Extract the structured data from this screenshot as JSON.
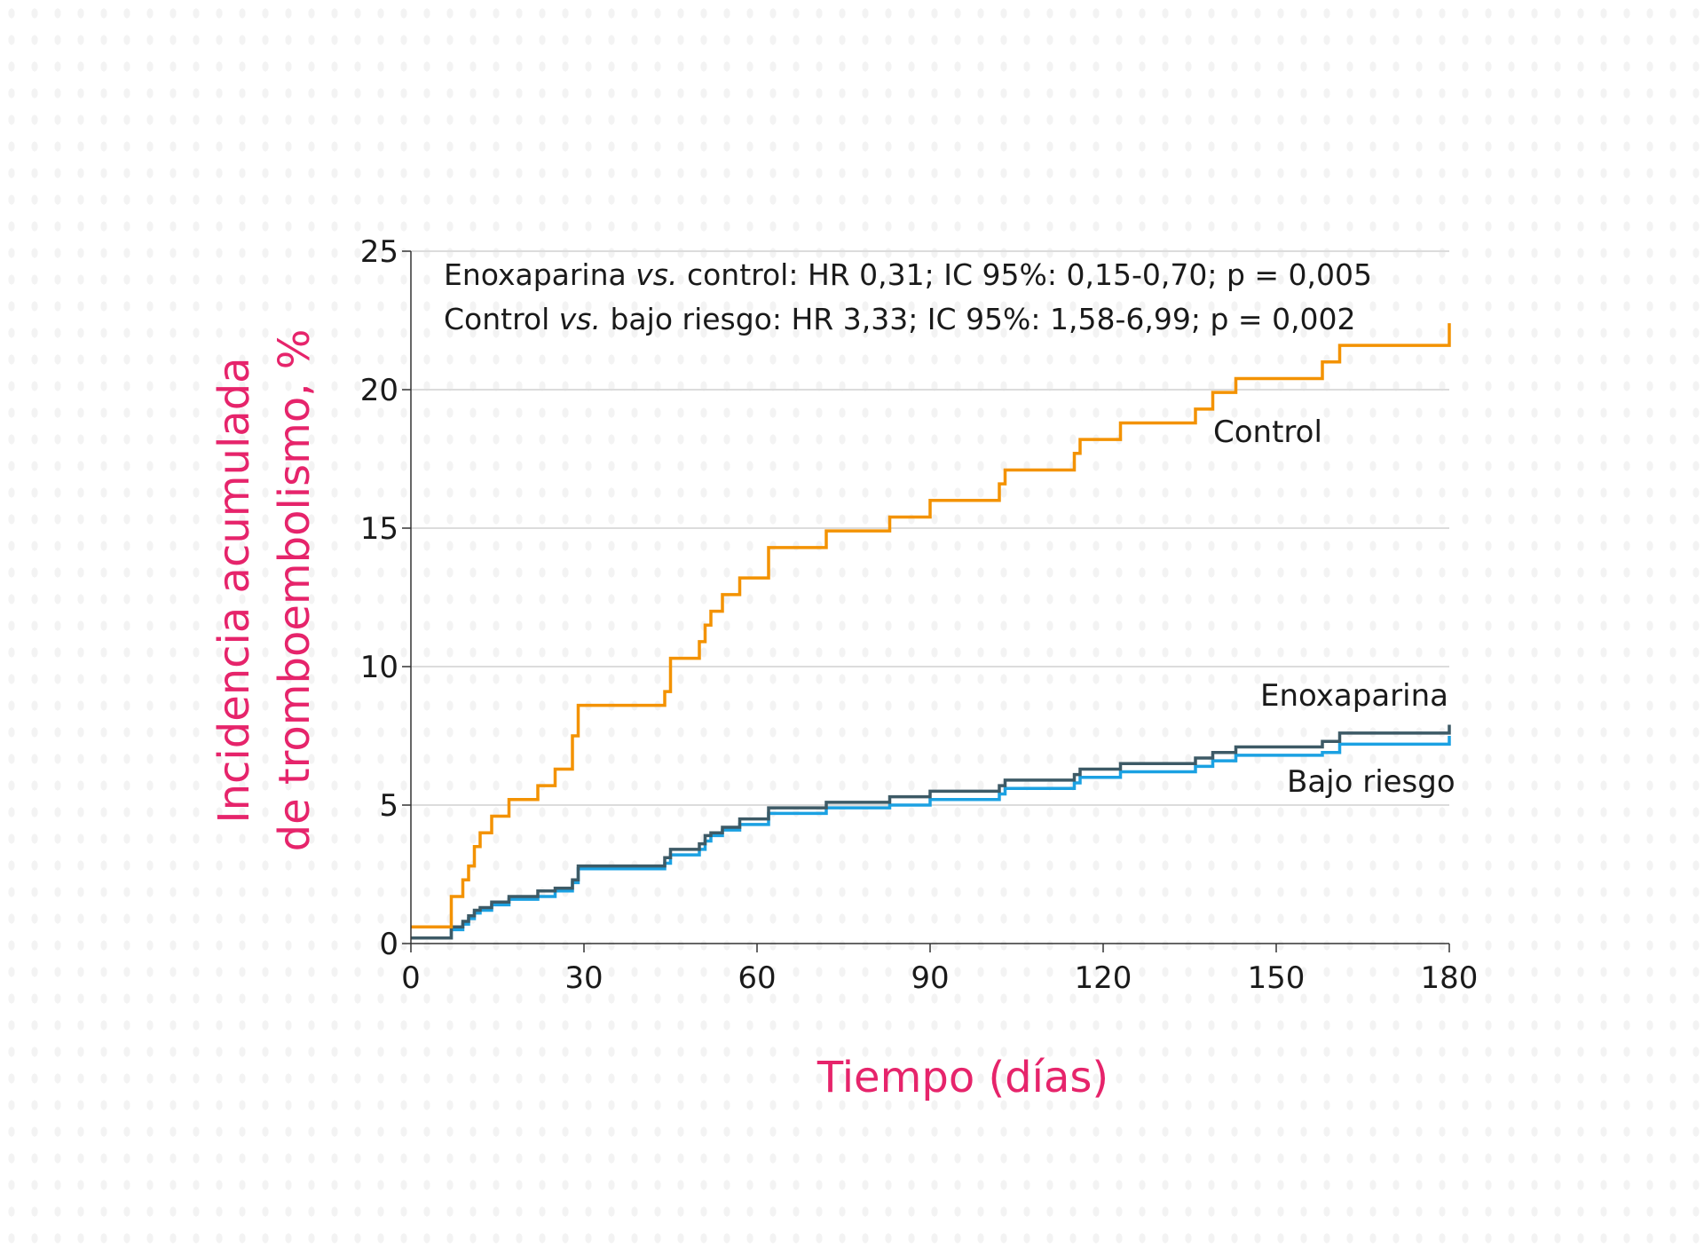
{
  "chart_data": {
    "type": "line",
    "step": true,
    "xlabel": "Tiempo (días)",
    "ylabel_lines": [
      "Incidencia acumulada",
      "de tromboembolismo, %"
    ],
    "xlim": [
      0,
      180
    ],
    "ylim": [
      0,
      25
    ],
    "xticks": [
      0,
      30,
      60,
      90,
      120,
      150,
      180
    ],
    "yticks": [
      0,
      5,
      10,
      15,
      20,
      25
    ],
    "grid": "horizontal",
    "annotations": [
      {
        "prefix": "Enoxaparina ",
        "italic": "vs.",
        "suffix": " control: HR 0,31; IC 95%: 0,15-0,70; p = 0,005"
      },
      {
        "prefix": "Control ",
        "italic": "vs.",
        "suffix": " bajo riesgo: HR 3,33; IC 95%: 1,58-6,99; p = 0,002"
      }
    ],
    "series": [
      {
        "name": "Control",
        "color": "#F39200",
        "x": [
          0,
          7,
          9,
          10,
          11,
          12,
          14,
          17,
          22,
          25,
          28,
          29,
          44,
          45,
          50,
          51,
          52,
          54,
          57,
          62,
          72,
          83,
          90,
          102,
          103,
          115,
          116,
          123,
          136,
          139,
          143,
          158,
          161,
          180
        ],
        "y": [
          0.6,
          1.7,
          2.3,
          2.8,
          3.5,
          4.0,
          4.6,
          5.2,
          5.7,
          6.3,
          7.5,
          8.6,
          9.1,
          10.3,
          10.9,
          11.5,
          12.0,
          12.6,
          13.2,
          14.3,
          14.9,
          15.4,
          16.0,
          16.6,
          17.1,
          17.7,
          18.2,
          18.8,
          19.3,
          19.9,
          20.4,
          21.0,
          21.6,
          22.4
        ]
      },
      {
        "name": "Enoxaparina",
        "color": "#3D5A66",
        "x": [
          0,
          7,
          9,
          10,
          11,
          12,
          14,
          17,
          22,
          25,
          28,
          29,
          44,
          45,
          50,
          51,
          52,
          54,
          57,
          62,
          72,
          83,
          90,
          102,
          103,
          115,
          116,
          123,
          136,
          139,
          143,
          158,
          161,
          180
        ],
        "y": [
          0.2,
          0.6,
          0.8,
          1.0,
          1.2,
          1.3,
          1.5,
          1.7,
          1.9,
          2.0,
          2.3,
          2.8,
          3.1,
          3.4,
          3.6,
          3.9,
          4.0,
          4.2,
          4.5,
          4.9,
          5.1,
          5.3,
          5.5,
          5.7,
          5.9,
          6.1,
          6.3,
          6.5,
          6.7,
          6.9,
          7.1,
          7.3,
          7.6,
          7.9
        ]
      },
      {
        "name": "Bajo riesgo",
        "color": "#1BA1E2",
        "x": [
          0,
          7,
          9,
          10,
          11,
          12,
          14,
          17,
          22,
          25,
          28,
          29,
          44,
          45,
          50,
          51,
          52,
          54,
          57,
          62,
          72,
          83,
          90,
          102,
          103,
          115,
          116,
          123,
          136,
          139,
          143,
          158,
          161,
          180
        ],
        "y": [
          0.2,
          0.5,
          0.7,
          0.9,
          1.1,
          1.2,
          1.4,
          1.6,
          1.7,
          1.9,
          2.2,
          2.7,
          2.9,
          3.2,
          3.4,
          3.7,
          3.9,
          4.1,
          4.3,
          4.7,
          4.9,
          5.0,
          5.2,
          5.4,
          5.6,
          5.8,
          6.0,
          6.2,
          6.4,
          6.6,
          6.8,
          6.9,
          7.2,
          7.5
        ]
      }
    ]
  }
}
